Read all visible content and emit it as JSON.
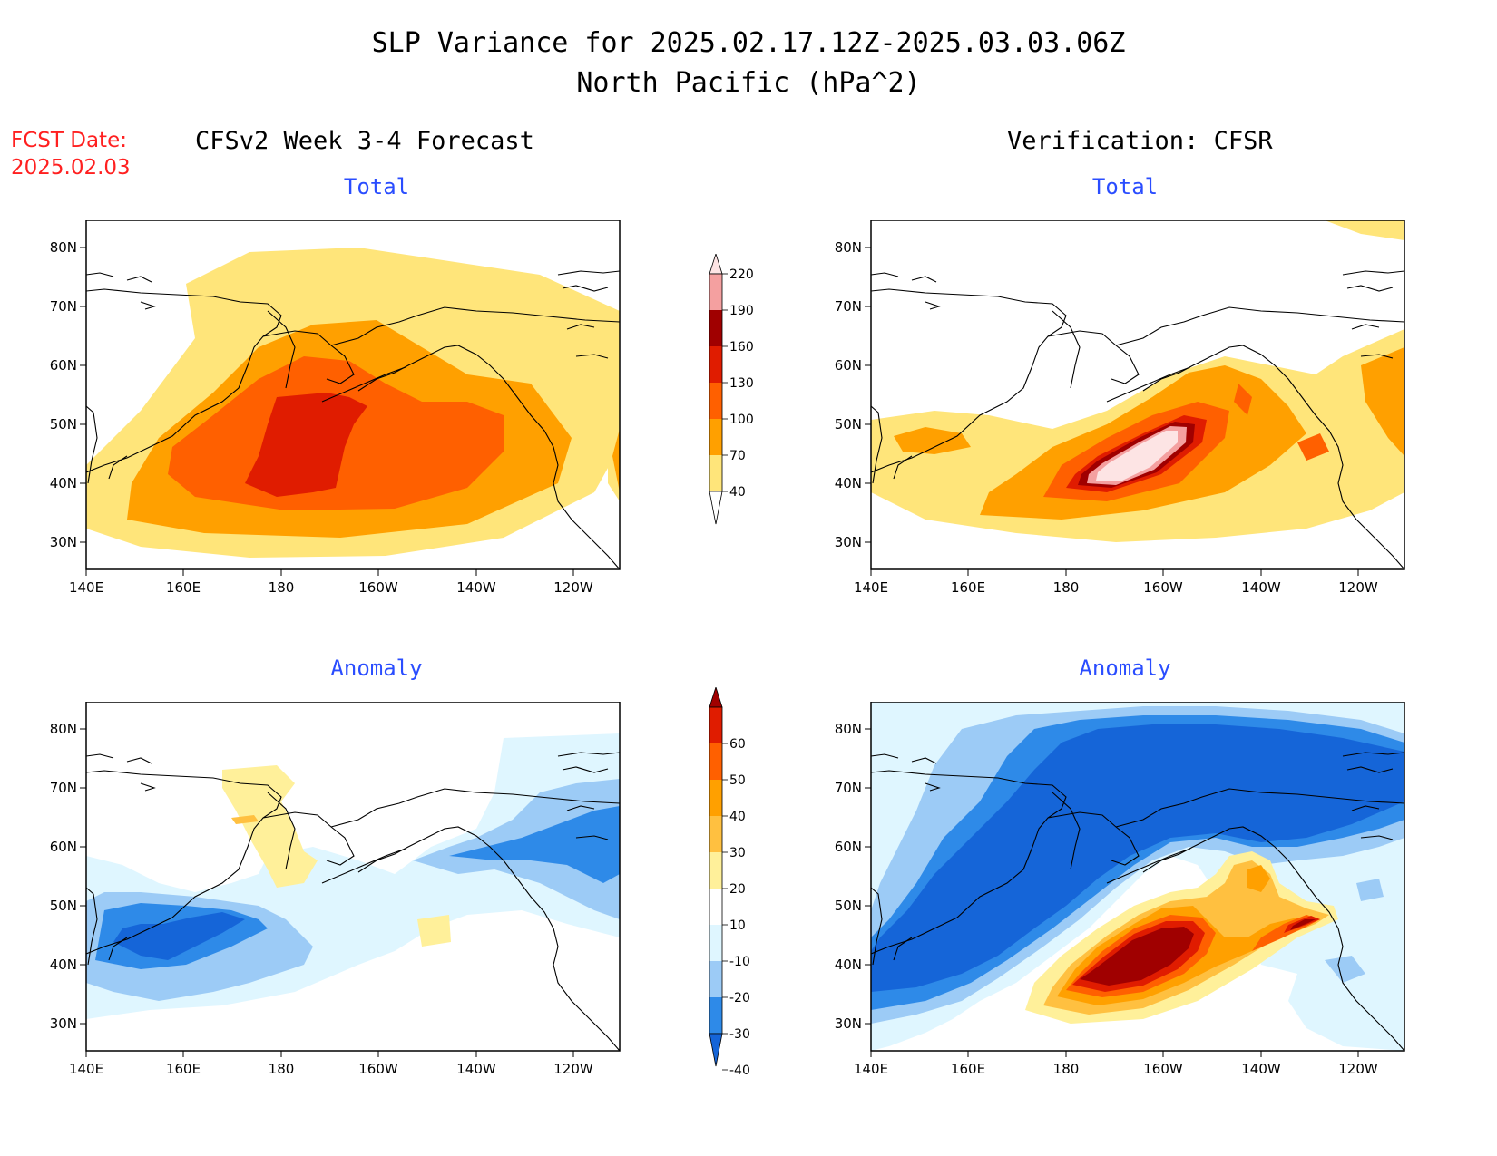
{
  "header": {
    "title_line1": "SLP Variance for 2025.02.17.12Z-2025.03.03.06Z",
    "title_line2": "North Pacific (hPa^2)",
    "fcst_label": "FCST Date:",
    "fcst_date": "2025.02.03",
    "left_column_title": "CFSv2 Week 3-4 Forecast",
    "right_column_title": "Verification: CFSR"
  },
  "panels": [
    {
      "id": "fcst-total",
      "title": "Total"
    },
    {
      "id": "verif-total",
      "title": "Total"
    },
    {
      "id": "fcst-anomaly",
      "title": "Anomaly"
    },
    {
      "id": "verif-anomaly",
      "title": "Anomaly"
    }
  ],
  "axes": {
    "lon_labels": [
      "140E",
      "160E",
      "180",
      "160W",
      "140W",
      "120W"
    ],
    "lat_labels": [
      "30N",
      "40N",
      "50N",
      "60N",
      "70N",
      "80N"
    ]
  },
  "colorbars": {
    "total": {
      "levels": [
        "40",
        "70",
        "100",
        "130",
        "160",
        "190",
        "220"
      ],
      "colors": [
        "#ffe57a",
        "#ffa000",
        "#ff6000",
        "#e01c00",
        "#a00000",
        "#f4a0a0",
        "#fde4e4"
      ]
    },
    "anomaly": {
      "levels": [
        "-40",
        "-30",
        "-20",
        "-10",
        "10",
        "20",
        "30",
        "40",
        "50",
        "60"
      ],
      "colors": [
        "#1565d8",
        "#2e8ae8",
        "#9ccbf6",
        "#dff6ff",
        "#ffffff",
        "#fff09a",
        "#ffc040",
        "#ffa000",
        "#ff6000",
        "#e01c00",
        "#a00000"
      ]
    }
  }
}
